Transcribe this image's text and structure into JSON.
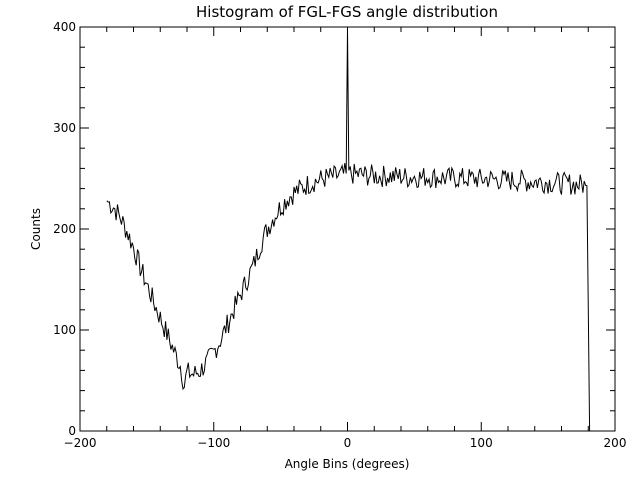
{
  "chart_data": {
    "type": "line",
    "title": "Histogram of FGL-FGS angle distribution",
    "xlabel": "Angle Bins (degrees)",
    "ylabel": "Counts",
    "xlim": [
      -200,
      200
    ],
    "ylim": [
      0,
      400
    ],
    "xticks": [
      -200,
      -100,
      0,
      100,
      200
    ],
    "yticks": [
      0,
      100,
      200,
      300,
      400
    ],
    "grid": false,
    "legend": "none",
    "colors": {
      "line": "#000000",
      "background": "#ffffff"
    },
    "series": [
      {
        "name": "counts",
        "x": [
          -180,
          -175,
          -170,
          -165,
          -160,
          -155,
          -150,
          -145,
          -140,
          -135,
          -130,
          -125,
          -122,
          -120,
          -115,
          -110,
          -105,
          -100,
          -95,
          -90,
          -85,
          -80,
          -75,
          -70,
          -65,
          -60,
          -55,
          -50,
          -45,
          -40,
          -35,
          -30,
          -25,
          -20,
          -15,
          -10,
          -5,
          -1,
          0,
          1,
          5,
          10,
          15,
          20,
          25,
          30,
          35,
          40,
          45,
          50,
          55,
          60,
          65,
          70,
          75,
          80,
          85,
          90,
          95,
          100,
          105,
          110,
          115,
          120,
          125,
          130,
          135,
          140,
          145,
          150,
          155,
          160,
          165,
          170,
          175,
          179,
          180,
          181
        ],
        "y": [
          228,
          222,
          212,
          198,
          182,
          162,
          145,
          128,
          112,
          96,
          80,
          65,
          45,
          58,
          56,
          60,
          68,
          78,
          90,
          105,
          120,
          135,
          150,
          165,
          185,
          200,
          212,
          222,
          230,
          236,
          240,
          244,
          247,
          249,
          251,
          252,
          253,
          255,
          398,
          255,
          254,
          254,
          253,
          253,
          252,
          253,
          252,
          252,
          251,
          252,
          251,
          252,
          251,
          251,
          250,
          251,
          250,
          250,
          250,
          249,
          250,
          249,
          249,
          248,
          248,
          248,
          247,
          247,
          247,
          246,
          246,
          245,
          245,
          244,
          244,
          243,
          120,
          0
        ]
      }
    ]
  }
}
